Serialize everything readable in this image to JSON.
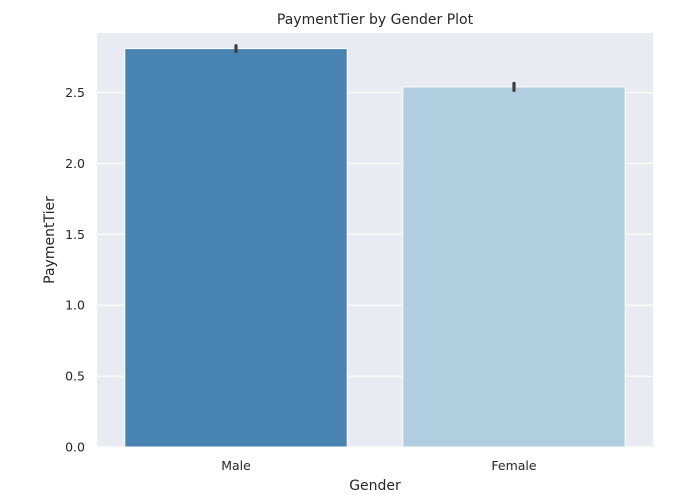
{
  "chart_data": {
    "type": "bar",
    "title": "PaymentTier by Gender Plot",
    "xlabel": "Gender",
    "ylabel": "PaymentTier",
    "categories": [
      "Male",
      "Female"
    ],
    "values": [
      2.81,
      2.54
    ],
    "error_bars": [
      [
        2.79,
        2.83
      ],
      [
        2.515,
        2.565
      ]
    ],
    "colors": [
      "#4883b1",
      "#b1cee0"
    ],
    "ylim": [
      0,
      2.92
    ],
    "yticks": [
      0.0,
      0.5,
      1.0,
      1.5,
      2.0,
      2.5
    ],
    "ytick_labels": [
      "0.0",
      "0.5",
      "1.0",
      "1.5",
      "2.0",
      "2.5"
    ],
    "grid": true,
    "background": "#eaeaf2",
    "error_bar_color": "#3d3d3d"
  }
}
